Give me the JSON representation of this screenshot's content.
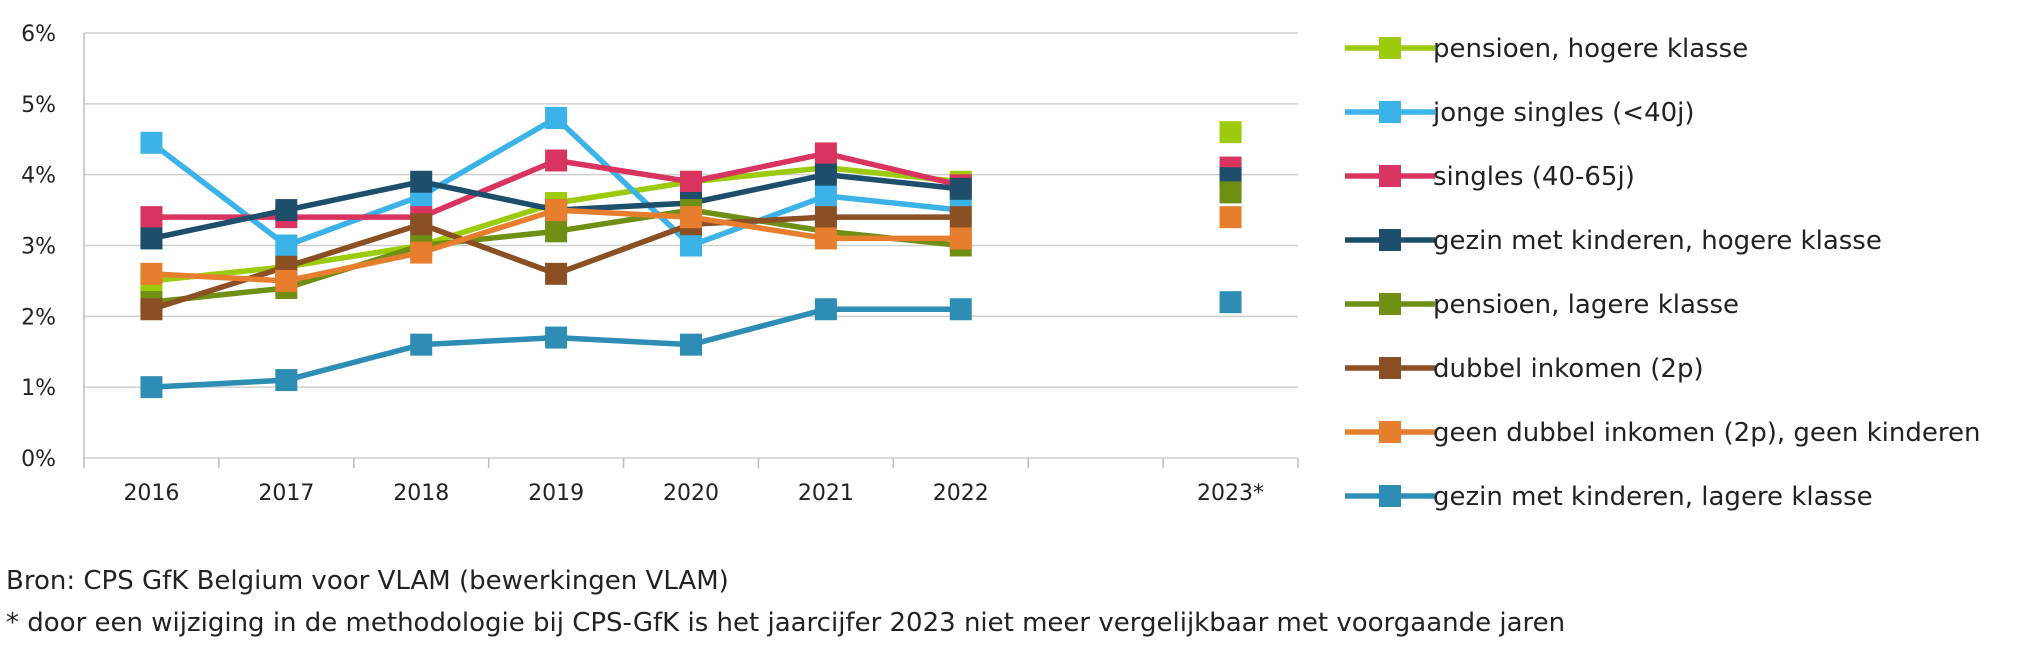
{
  "chart_data": {
    "type": "line",
    "categories": [
      "2016",
      "2017",
      "2018",
      "2019",
      "2020",
      "2021",
      "2022",
      "",
      "2023*"
    ],
    "ylim": [
      0,
      6
    ],
    "yticks": [
      "0%",
      "1%",
      "2%",
      "3%",
      "4%",
      "5%",
      "6%"
    ],
    "grid": true,
    "legend_position": "right",
    "title": "",
    "xlabel": "",
    "ylabel": "",
    "series": [
      {
        "name": "pensioen, hogere klasse",
        "color": "#9BCB0B",
        "values": [
          2.5,
          2.7,
          3.0,
          3.6,
          3.9,
          4.1,
          3.9,
          null,
          4.6
        ]
      },
      {
        "name": "jonge singles (<40j)",
        "color": "#3BB3E8",
        "values": [
          4.45,
          3.0,
          3.7,
          4.8,
          3.0,
          3.7,
          3.5,
          null,
          null
        ]
      },
      {
        "name": "singles (40-65j)",
        "color": "#D9345F",
        "values": [
          3.4,
          3.4,
          3.4,
          4.2,
          3.9,
          4.3,
          3.85,
          null,
          4.1
        ]
      },
      {
        "name": "gezin met kinderen, hogere klasse",
        "color": "#1D4E6B",
        "values": [
          3.1,
          3.5,
          3.9,
          3.5,
          3.6,
          4.0,
          3.8,
          null,
          3.95
        ]
      },
      {
        "name": "pensioen, lagere klasse",
        "color": "#6E8E14",
        "values": [
          2.2,
          2.4,
          3.0,
          3.2,
          3.5,
          3.2,
          3.0,
          null,
          3.75
        ]
      },
      {
        "name": "dubbel inkomen (2p)",
        "color": "#8B4F24",
        "values": [
          2.1,
          2.7,
          3.3,
          2.6,
          3.3,
          3.4,
          3.4,
          null,
          null
        ]
      },
      {
        "name": "geen dubbel inkomen (2p), geen kinderen",
        "color": "#E67E2E",
        "values": [
          2.6,
          2.5,
          2.9,
          3.5,
          3.4,
          3.1,
          3.1,
          null,
          3.4
        ]
      },
      {
        "name": "gezin met kinderen, lagere klasse",
        "color": "#2E8DB5",
        "values": [
          1.0,
          1.1,
          1.6,
          1.7,
          1.6,
          2.1,
          2.1,
          null,
          2.2
        ]
      }
    ]
  },
  "notes": {
    "source": "Bron: CPS GfK Belgium voor VLAM (bewerkingen VLAM)",
    "footnote": "* door een wijziging in de methodologie bij CPS-GfK is het jaarcijfer 2023 niet meer vergelijkbaar met voorgaande jaren"
  }
}
